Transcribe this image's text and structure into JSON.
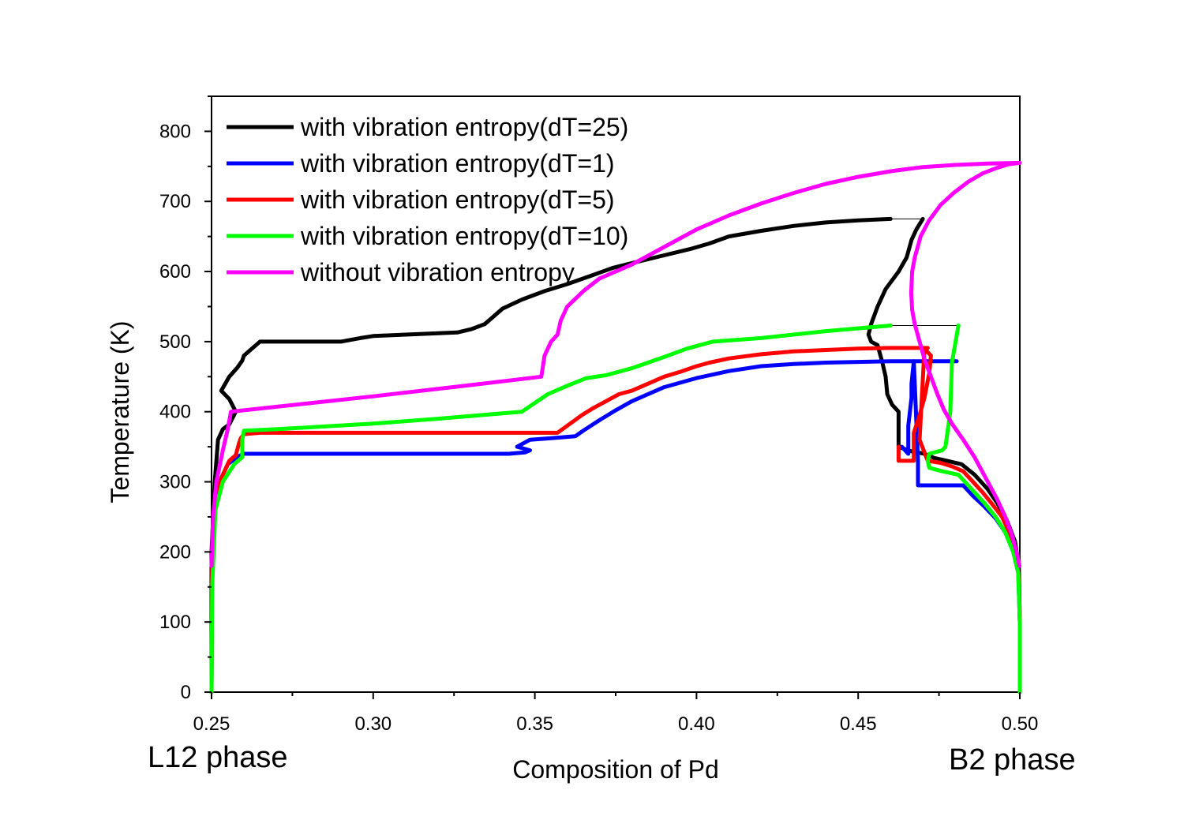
{
  "chart_data": {
    "type": "line",
    "xlabel": "Composition of Pd",
    "ylabel": "Temperature (K)",
    "xlim": [
      0.25,
      0.5
    ],
    "ylim": [
      0,
      850
    ],
    "xticks": [
      "0.25",
      "0.30",
      "0.35",
      "0.40",
      "0.45",
      "0.50"
    ],
    "yticks": [
      "0",
      "100",
      "200",
      "300",
      "400",
      "500",
      "600",
      "700",
      "800"
    ],
    "phase_labels": {
      "left": "L12 phase",
      "right": "B2 phase"
    },
    "grid": false,
    "legend_position": "top-left",
    "series": [
      {
        "name": "with vibration entropy(dT=25)",
        "color": "#000000",
        "x": [
          0.25,
          0.25,
          0.251,
          0.252,
          0.2535,
          0.2555,
          0.2575,
          0.2555,
          0.253,
          0.2555,
          0.258,
          0.2595,
          0.26,
          0.265,
          0.27,
          0.29,
          0.296,
          0.3,
          0.31,
          0.326,
          0.3305,
          0.3345,
          0.337,
          0.34,
          0.346,
          0.353,
          0.36,
          0.368,
          0.374,
          0.38,
          0.389,
          0.398,
          0.404,
          0.41,
          0.42,
          0.43,
          0.44,
          0.45,
          0.46
        ],
        "y": [
          0,
          200,
          300,
          360,
          375,
          382,
          400,
          418,
          430,
          450,
          463,
          473,
          480,
          500,
          500,
          500,
          505,
          508,
          510,
          513,
          518,
          525,
          535,
          547,
          560,
          572,
          582,
          595,
          605,
          612,
          622,
          632,
          640,
          650,
          658,
          665,
          670,
          673,
          675
        ],
        "x2": [
          0.47,
          0.468,
          0.4665,
          0.465,
          0.4625,
          0.4585,
          0.456,
          0.454,
          0.4532,
          0.454,
          0.456,
          0.4575,
          0.4585,
          0.459,
          0.4605,
          0.4625,
          0.4625,
          0.4625,
          0.466,
          0.4705,
          0.4735,
          0.4775,
          0.482,
          0.486,
          0.49,
          0.493,
          0.496,
          0.4985,
          0.4997,
          0.5,
          0.5
        ],
        "y2": [
          675,
          660,
          645,
          620,
          600,
          575,
          550,
          525,
          510,
          500,
          495,
          470,
          450,
          425,
          410,
          400,
          385,
          350,
          344,
          340,
          334,
          330,
          325,
          310,
          290,
          270,
          245,
          215,
          180,
          100,
          0
        ]
      },
      {
        "name": "with vibration entropy(dT=1)",
        "color": "#0000ff",
        "x": [
          0.25,
          0.2502,
          0.251,
          0.2525,
          0.255,
          0.2575,
          0.259,
          0.26,
          0.27,
          0.3,
          0.33,
          0.342,
          0.347,
          0.3485,
          0.3445,
          0.3485,
          0.357,
          0.3625,
          0.365,
          0.37,
          0.375,
          0.38,
          0.39,
          0.4,
          0.41,
          0.42,
          0.43,
          0.44,
          0.45,
          0.46,
          0.468,
          0.4805
        ],
        "y": [
          0,
          200,
          260,
          300,
          325,
          334,
          338,
          340,
          340,
          340,
          340,
          340,
          342,
          345,
          350,
          360,
          363,
          365,
          373,
          388,
          402,
          415,
          435,
          448,
          458,
          465,
          468,
          470,
          471,
          472,
          472,
          472
        ],
        "x2": [
          0.4635,
          0.4645,
          0.4655,
          0.4655,
          0.4665,
          0.4665,
          0.4672,
          0.4685,
          0.4685,
          0.4745,
          0.478,
          0.4825,
          0.4855,
          0.489,
          0.4925,
          0.4955,
          0.498,
          0.4995,
          0.5,
          0.5
        ],
        "y2": [
          350,
          345,
          340,
          380,
          420,
          440,
          472,
          330,
          295,
          295,
          295,
          295,
          280,
          265,
          248,
          228,
          200,
          170,
          100,
          0
        ]
      },
      {
        "name": "with vibration entropy(dT=5)",
        "color": "#ff0000",
        "x": [
          0.25,
          0.2502,
          0.251,
          0.2525,
          0.2555,
          0.2575,
          0.2585,
          0.259,
          0.26,
          0.265,
          0.3,
          0.33,
          0.357,
          0.36,
          0.3645,
          0.368,
          0.372,
          0.376,
          0.38,
          0.385,
          0.39,
          0.395,
          0.4,
          0.404,
          0.41,
          0.42,
          0.43,
          0.44,
          0.45,
          0.46,
          0.47,
          0.4715
        ],
        "y": [
          0,
          200,
          260,
          300,
          330,
          338,
          355,
          362,
          368,
          370,
          370,
          370,
          370,
          380,
          395,
          405,
          415,
          425,
          430,
          440,
          450,
          457,
          465,
          470,
          476,
          482,
          486,
          488,
          490,
          491,
          491,
          491
        ],
        "x2": [
          0.4625,
          0.4625,
          0.4672,
          0.4672,
          0.469,
          0.4705,
          0.472,
          0.4725,
          0.4705,
          0.469,
          0.4715,
          0.4755,
          0.479,
          0.4825,
          0.4855,
          0.4885,
          0.4915,
          0.4945,
          0.497,
          0.499,
          0.4997,
          0.5,
          0.5
        ],
        "y2": [
          350,
          330,
          330,
          370,
          395,
          420,
          455,
          480,
          490,
          360,
          330,
          327,
          322,
          315,
          300,
          285,
          268,
          250,
          225,
          195,
          160,
          100,
          0
        ]
      },
      {
        "name": "with vibration entropy(dT=10)",
        "color": "#00ff00",
        "x": [
          0.25,
          0.2502,
          0.2512,
          0.2535,
          0.257,
          0.2595,
          0.2595,
          0.26,
          0.27,
          0.3,
          0.32,
          0.346,
          0.354,
          0.36,
          0.366,
          0.372,
          0.38,
          0.39,
          0.397,
          0.405,
          0.42,
          0.44,
          0.46
        ],
        "y": [
          0,
          150,
          260,
          300,
          325,
          335,
          360,
          373,
          375,
          383,
          390,
          400,
          425,
          437,
          448,
          452,
          462,
          478,
          490,
          500,
          505,
          515,
          523
        ],
        "x2": [
          0.481,
          0.479,
          0.4785,
          0.477,
          0.476,
          0.472,
          0.4715,
          0.472,
          0.476,
          0.481,
          0.485,
          0.489,
          0.4925,
          0.4955,
          0.498,
          0.4995,
          0.5,
          0.5
        ],
        "y2": [
          523,
          470,
          400,
          350,
          345,
          340,
          330,
          320,
          315,
          310,
          290,
          270,
          250,
          228,
          200,
          170,
          100,
          0
        ]
      },
      {
        "name": "without vibration entropy",
        "color": "#ff00ff",
        "x": [
          0.25,
          0.2505,
          0.2515,
          0.2535,
          0.255,
          0.256,
          0.26,
          0.3,
          0.33,
          0.352,
          0.353,
          0.355,
          0.357,
          0.358,
          0.36,
          0.365,
          0.37,
          0.38,
          0.39,
          0.4,
          0.41,
          0.42,
          0.43,
          0.44,
          0.45,
          0.46,
          0.47,
          0.48,
          0.49,
          0.5
        ],
        "y": [
          180,
          250,
          300,
          345,
          375,
          400,
          402,
          422,
          438,
          450,
          480,
          500,
          510,
          530,
          550,
          572,
          590,
          610,
          635,
          660,
          680,
          697,
          712,
          725,
          735,
          743,
          749,
          752,
          754,
          755
        ],
        "x2": [
          0.5,
          0.4965,
          0.493,
          0.4885,
          0.484,
          0.4795,
          0.4755,
          0.4718,
          0.4693,
          0.4675,
          0.4667,
          0.4664,
          0.4667,
          0.4675,
          0.469,
          0.4705,
          0.4725,
          0.4745,
          0.4765,
          0.479,
          0.4825,
          0.486,
          0.4895,
          0.493,
          0.4955,
          0.4975,
          0.499,
          0.4999
        ],
        "y2": [
          755,
          753,
          748,
          740,
          728,
          712,
          695,
          672,
          650,
          620,
          600,
          570,
          545,
          525,
          500,
          475,
          450,
          425,
          403,
          383,
          360,
          335,
          305,
          275,
          250,
          225,
          200,
          180
        ]
      }
    ],
    "connector_lines": [
      {
        "x": [
          0.46,
          0.47
        ],
        "y": [
          675,
          675
        ],
        "color": "#000000"
      },
      {
        "x": [
          0.46,
          0.481
        ],
        "y": [
          523,
          523
        ],
        "color": "#000000"
      }
    ]
  }
}
